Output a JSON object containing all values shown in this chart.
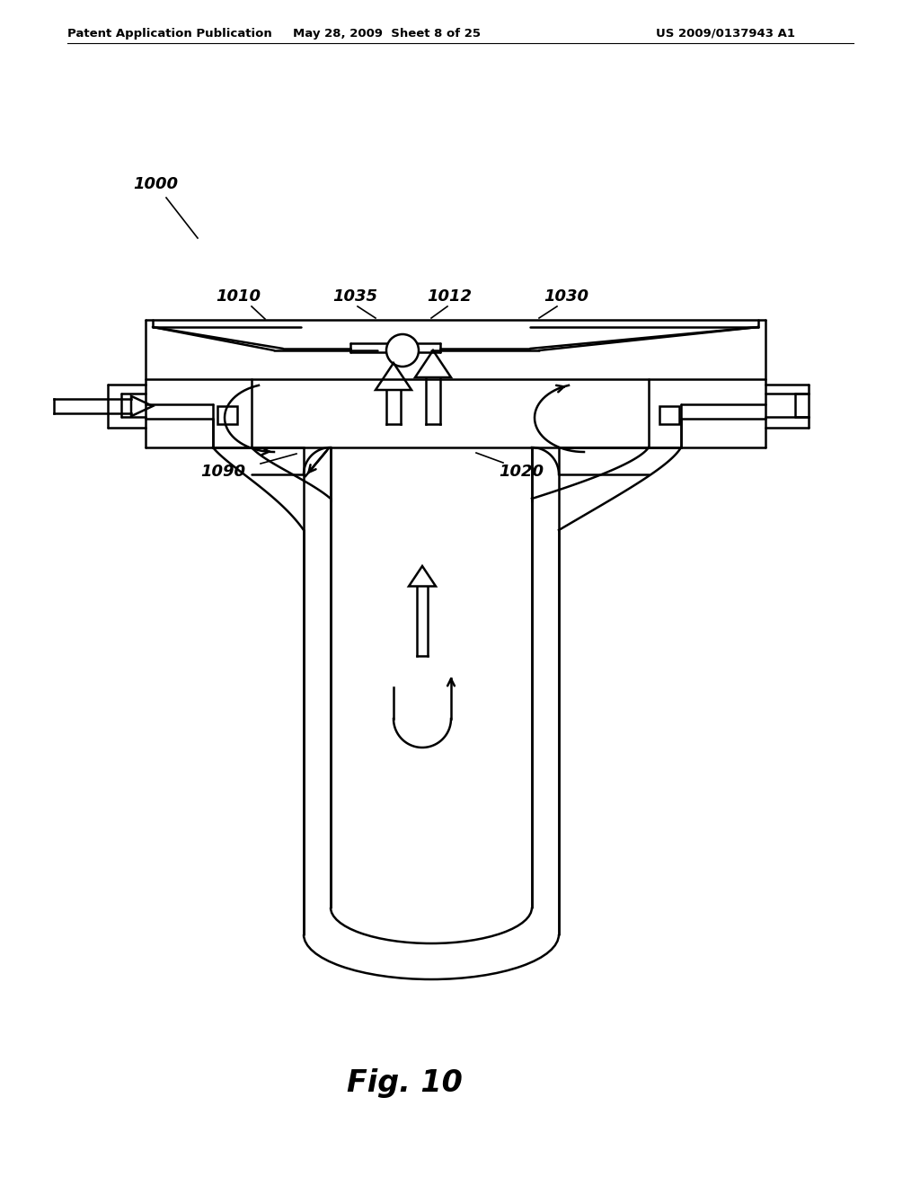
{
  "bg_color": "#ffffff",
  "line_color": "#000000",
  "header_left": "Patent Application Publication",
  "header_mid": "May 28, 2009  Sheet 8 of 25",
  "header_right": "US 2009/0137943 A1",
  "fig_label": "Fig. 10"
}
